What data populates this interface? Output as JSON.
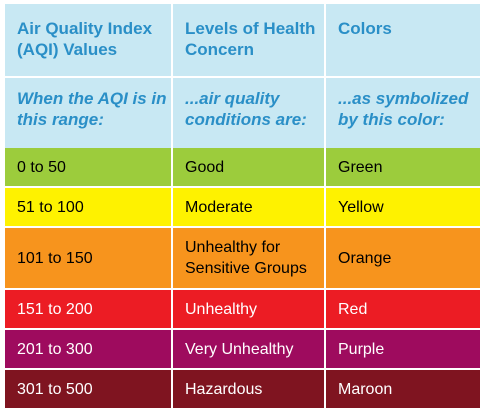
{
  "header": {
    "col1": "Air Quality Index (AQI) Values",
    "col2": "Levels of Health Concern",
    "col3": "Colors"
  },
  "subheader": {
    "col1": "When the AQI is in this range:",
    "col2": "...air quality conditions are:",
    "col3": "...as symbolized by this color:"
  },
  "rows": [
    {
      "range": "0 to 50",
      "level": "Good",
      "color_name": "Green",
      "bg": "#9ccc3c",
      "fg": "#000000"
    },
    {
      "range": "51 to 100",
      "level": "Moderate",
      "color_name": "Yellow",
      "bg": "#fef200",
      "fg": "#000000"
    },
    {
      "range": "101 to 150",
      "level": "Unhealthy for Sensitive Groups",
      "color_name": "Orange",
      "bg": "#f7941d",
      "fg": "#000000"
    },
    {
      "range": "151 to 200",
      "level": "Unhealthy",
      "color_name": "Red",
      "bg": "#ec1c24",
      "fg": "#ffffff"
    },
    {
      "range": "201 to 300",
      "level": "Very Unhealthy",
      "color_name": "Purple",
      "bg": "#9e0b5e",
      "fg": "#ffffff"
    },
    {
      "range": "301 to 500",
      "level": "Hazardous",
      "color_name": "Maroon",
      "bg": "#7f1420",
      "fg": "#ffffff"
    }
  ]
}
